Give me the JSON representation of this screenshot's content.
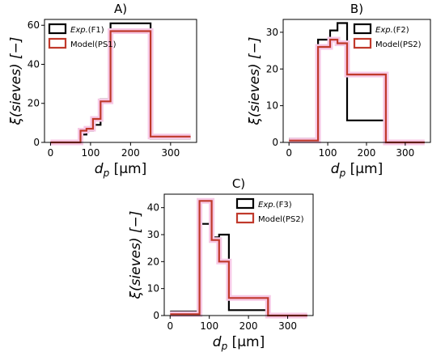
{
  "chart_data": [
    {
      "type": "step",
      "title": "A)",
      "xlabel": "d_p [μm]",
      "ylabel": "ξ(sieves) [−]",
      "xlim": [
        -15,
        365
      ],
      "ylim": [
        0,
        63
      ],
      "xticks": [
        0,
        100,
        200,
        300
      ],
      "yticks": [
        0,
        20,
        40,
        60
      ],
      "legend_position": "top-left",
      "series": [
        {
          "name": "Exp.(F1)",
          "legend_italic": "Exp.",
          "legend_rest": "(F1)",
          "color": "#000000",
          "edges": [
            0,
            63,
            75,
            90,
            106,
            125,
            150,
            250,
            350
          ],
          "values": [
            0,
            0,
            4,
            6,
            9,
            22,
            61,
            2,
            2
          ]
        },
        {
          "name": "Model(PS1)",
          "legend_italic": "",
          "legend_rest": "Model(PS1)",
          "color": "#c0392b",
          "edges": [
            0,
            63,
            75,
            90,
            106,
            125,
            150,
            250,
            350
          ],
          "values": [
            0,
            0,
            6,
            7,
            12,
            21,
            57,
            3,
            3
          ]
        }
      ]
    },
    {
      "type": "step",
      "title": "B)",
      "xlabel": "d_p [μm]",
      "ylabel": "ξ(sieves) [−]",
      "xlim": [
        -15,
        365
      ],
      "ylim": [
        0,
        33.5
      ],
      "xticks": [
        0,
        100,
        200,
        300
      ],
      "yticks": [
        0,
        10,
        20,
        30
      ],
      "legend_position": "top-right",
      "series": [
        {
          "name": "Exp.(F2)",
          "legend_italic": "Exp.",
          "legend_rest": "(F2)",
          "color": "#000000",
          "edges": [
            0,
            63,
            75,
            106,
            125,
            150,
            250,
            350
          ],
          "values": [
            1,
            1,
            28,
            30.5,
            32.5,
            6,
            0,
            0
          ]
        },
        {
          "name": "Model(PS2)",
          "legend_italic": "",
          "legend_rest": "Model(PS2)",
          "color": "#c0392b",
          "edges": [
            0,
            63,
            75,
            106,
            125,
            150,
            250,
            350
          ],
          "values": [
            0.5,
            0.5,
            26,
            28,
            27,
            18.5,
            0,
            0
          ]
        }
      ]
    },
    {
      "type": "step",
      "title": "C)",
      "xlabel": "d_p [μm]",
      "ylabel": "ξ(sieves) [−]",
      "xlim": [
        -15,
        365
      ],
      "ylim": [
        0,
        45
      ],
      "xticks": [
        0,
        100,
        200,
        300
      ],
      "yticks": [
        0,
        10,
        20,
        30,
        40
      ],
      "legend_position": "top-right",
      "series": [
        {
          "name": "Exp.(F3)",
          "legend_italic": "Exp.",
          "legend_rest": "(F3)",
          "color": "#000000",
          "edges": [
            0,
            63,
            75,
            106,
            125,
            150,
            250,
            350
          ],
          "values": [
            1.5,
            1.5,
            34,
            29,
            30,
            2,
            0,
            0
          ]
        },
        {
          "name": "Model(PS2)",
          "legend_italic": "",
          "legend_rest": "Model(PS2)",
          "color": "#c0392b",
          "edges": [
            0,
            63,
            75,
            106,
            125,
            150,
            250,
            350
          ],
          "values": [
            0.5,
            0.5,
            42.5,
            28,
            20,
            6.5,
            0,
            0
          ]
        }
      ]
    }
  ]
}
